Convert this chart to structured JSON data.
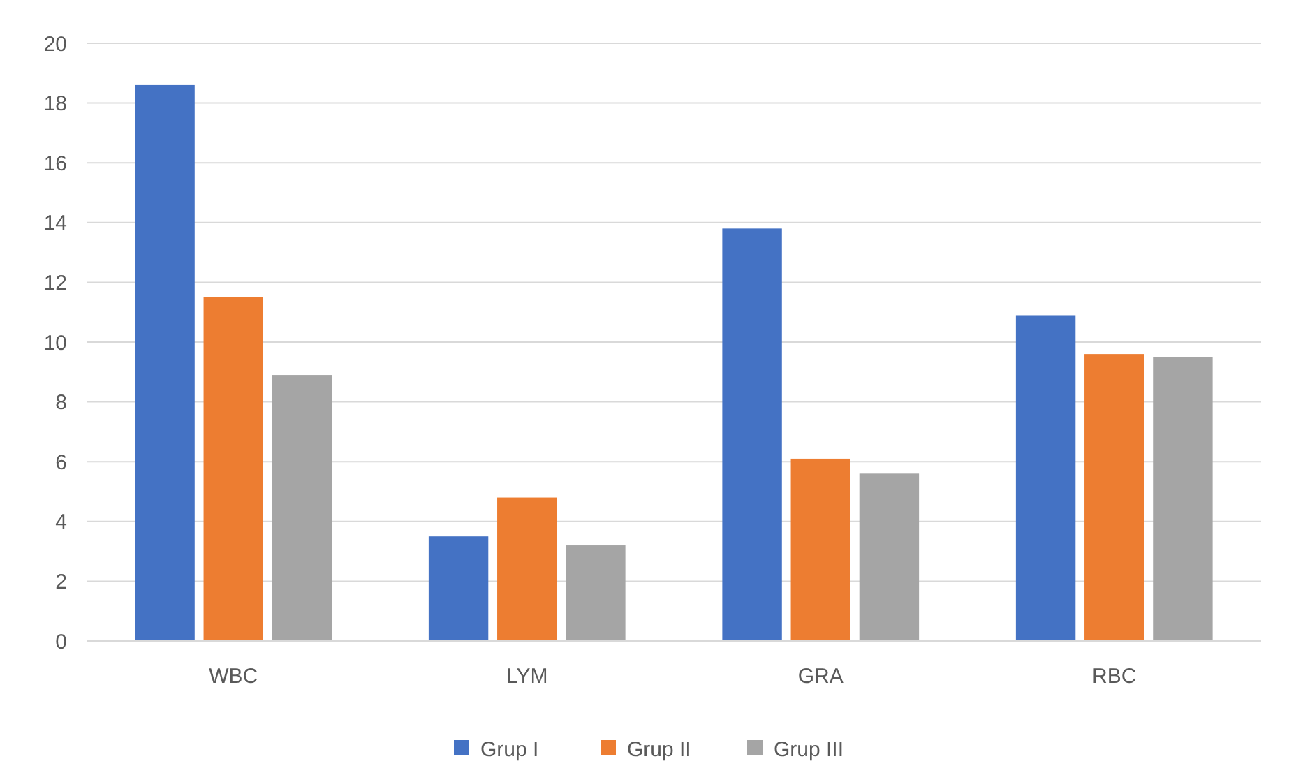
{
  "chart_data": {
    "type": "bar",
    "categories": [
      "WBC",
      "LYM",
      "GRA",
      "RBC"
    ],
    "series": [
      {
        "name": "Grup I",
        "color": "#4472c4",
        "values": [
          18.6,
          3.5,
          13.8,
          10.9
        ]
      },
      {
        "name": "Grup II",
        "color": "#ed7d31",
        "values": [
          11.5,
          4.8,
          6.1,
          9.6
        ]
      },
      {
        "name": "Grup III",
        "color": "#a5a5a5",
        "values": [
          8.9,
          3.2,
          5.6,
          9.5
        ]
      }
    ],
    "ylim": [
      0,
      20
    ],
    "yticks": [
      0,
      2,
      4,
      6,
      8,
      10,
      12,
      14,
      16,
      18,
      20
    ],
    "grid": "y",
    "legend": "bottom"
  }
}
